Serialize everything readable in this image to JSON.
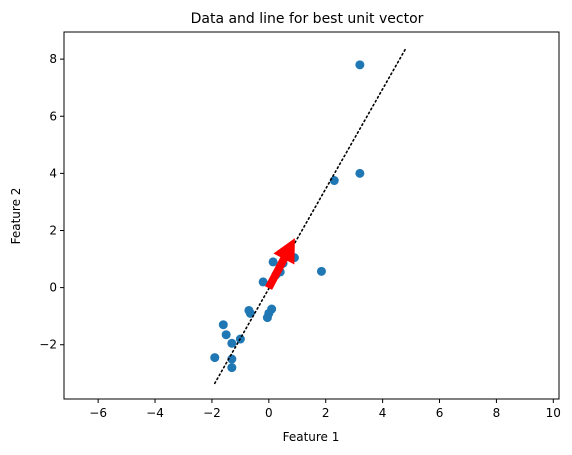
{
  "chart_data": {
    "type": "scatter",
    "title": "Data and line for best unit vector",
    "xlabel": "Feature 1",
    "ylabel": "Feature 2",
    "xlim": [
      -7.2,
      10.2
    ],
    "ylim": [
      -3.9,
      8.95
    ],
    "xticks": [
      -6,
      -4,
      -2,
      0,
      2,
      4,
      6,
      8,
      10
    ],
    "yticks": [
      -2,
      0,
      2,
      4,
      6,
      8
    ],
    "grid": false,
    "colors": {
      "points": "#1f77b4",
      "arrow": "#ff0000",
      "line": "#000000"
    },
    "points": [
      {
        "x": 3.2,
        "y": 7.8
      },
      {
        "x": 3.2,
        "y": 4.0
      },
      {
        "x": 2.3,
        "y": 3.75
      },
      {
        "x": 1.85,
        "y": 0.57
      },
      {
        "x": 0.9,
        "y": 1.05
      },
      {
        "x": 0.65,
        "y": 1.1
      },
      {
        "x": 0.5,
        "y": 0.85
      },
      {
        "x": 0.4,
        "y": 0.55
      },
      {
        "x": 0.25,
        "y": 0.45
      },
      {
        "x": 0.15,
        "y": 0.9
      },
      {
        "x": -0.2,
        "y": 0.2
      },
      {
        "x": 0.1,
        "y": -0.75
      },
      {
        "x": 0.0,
        "y": -0.9
      },
      {
        "x": -0.05,
        "y": -1.05
      },
      {
        "x": -0.7,
        "y": -0.8
      },
      {
        "x": -0.65,
        "y": -0.9
      },
      {
        "x": -1.0,
        "y": -1.8
      },
      {
        "x": -1.3,
        "y": -1.95
      },
      {
        "x": -1.5,
        "y": -1.65
      },
      {
        "x": -1.6,
        "y": -1.3
      },
      {
        "x": -1.3,
        "y": -2.5
      },
      {
        "x": -1.3,
        "y": -2.8
      },
      {
        "x": -1.9,
        "y": -2.45
      }
    ],
    "best_fit_line": {
      "x": [
        -1.9,
        4.8
      ],
      "y": [
        -3.35,
        8.35
      ],
      "style": "dotted"
    },
    "unit_vector": {
      "from": [
        0.0,
        0.0
      ],
      "to": [
        0.9,
        1.7
      ]
    }
  }
}
